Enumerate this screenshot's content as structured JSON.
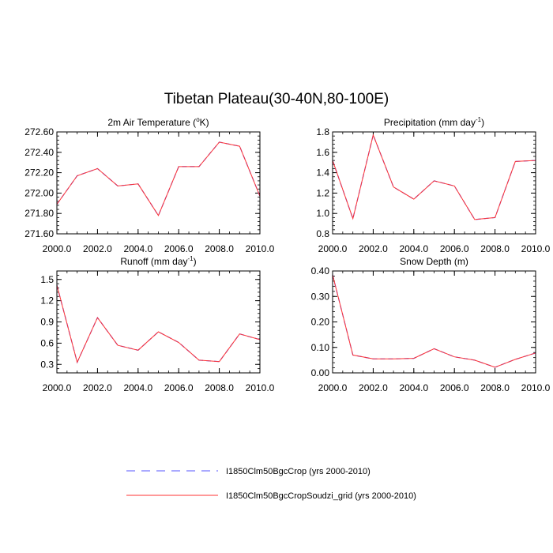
{
  "figure": {
    "title": "Tibetan Plateau(30-40N,80-100E)"
  },
  "chart_data": [
    {
      "type": "line",
      "title": "2m Air Temperature (°K)",
      "title_parts": {
        "base": "2m Air Temperature (",
        "sup": "o",
        "tail": "K)"
      },
      "x": [
        2000,
        2001,
        2002,
        2003,
        2004,
        2005,
        2006,
        2007,
        2008,
        2009,
        2010
      ],
      "xlim": [
        2000,
        2010
      ],
      "ylim": [
        271.6,
        272.6
      ],
      "xticks": [
        2000,
        2002,
        2004,
        2006,
        2008,
        2010
      ],
      "xtick_labels": [
        "2000.0",
        "2002.0",
        "2004.0",
        "2006.0",
        "2008.0",
        "2010.0"
      ],
      "yticks": [
        271.6,
        271.8,
        272.0,
        272.2,
        272.4,
        272.6
      ],
      "ytick_labels": [
        "271.60",
        "271.80",
        "272.00",
        "272.20",
        "272.40",
        "272.60"
      ],
      "series": [
        {
          "name": "I1850Clm50BgcCrop (yrs 2000-2010)",
          "values": [
            271.89,
            272.17,
            272.24,
            272.07,
            272.09,
            271.78,
            272.26,
            272.26,
            272.5,
            272.46,
            271.97
          ]
        },
        {
          "name": "I1850Clm50BgcCropSoudzi_grid (yrs 2000-2010)",
          "values": [
            271.89,
            272.17,
            272.24,
            272.07,
            272.09,
            271.78,
            272.26,
            272.26,
            272.5,
            272.46,
            271.97
          ]
        }
      ]
    },
    {
      "type": "line",
      "title": "Precipitation (mm day-1)",
      "title_parts": {
        "base": "Precipitation (mm day",
        "sup": "-1",
        "tail": ")"
      },
      "x": [
        2000,
        2001,
        2002,
        2003,
        2004,
        2005,
        2006,
        2007,
        2008,
        2009,
        2010
      ],
      "xlim": [
        2000,
        2010
      ],
      "ylim": [
        0.8,
        1.8
      ],
      "xticks": [
        2000,
        2002,
        2004,
        2006,
        2008,
        2010
      ],
      "xtick_labels": [
        "2000.0",
        "2002.0",
        "2004.0",
        "2006.0",
        "2008.0",
        "2010.0"
      ],
      "yticks": [
        0.8,
        1.0,
        1.2,
        1.4,
        1.6,
        1.8
      ],
      "ytick_labels": [
        "0.8",
        "1.0",
        "1.2",
        "1.4",
        "1.6",
        "1.8"
      ],
      "series": [
        {
          "name": "I1850Clm50BgcCrop (yrs 2000-2010)",
          "values": [
            1.52,
            0.95,
            1.77,
            1.26,
            1.14,
            1.32,
            1.27,
            0.94,
            0.96,
            1.51,
            1.52
          ]
        },
        {
          "name": "I1850Clm50BgcCropSoudzi_grid (yrs 2000-2010)",
          "values": [
            1.52,
            0.95,
            1.77,
            1.26,
            1.14,
            1.32,
            1.27,
            0.94,
            0.96,
            1.51,
            1.52
          ]
        }
      ]
    },
    {
      "type": "line",
      "title": "Runoff (mm day-1)",
      "title_parts": {
        "base": "Runoff (mm day",
        "sup": "-1",
        "tail": ")"
      },
      "x": [
        2000,
        2001,
        2002,
        2003,
        2004,
        2005,
        2006,
        2007,
        2008,
        2009,
        2010
      ],
      "xlim": [
        2000,
        2010
      ],
      "ylim": [
        0.18,
        1.62
      ],
      "xticks": [
        2000,
        2002,
        2004,
        2006,
        2008,
        2010
      ],
      "xtick_labels": [
        "2000.0",
        "2002.0",
        "2004.0",
        "2006.0",
        "2008.0",
        "2010.0"
      ],
      "yticks": [
        0.3,
        0.6,
        0.9,
        1.2,
        1.5
      ],
      "ytick_labels": [
        "0.3",
        "0.6",
        "0.9",
        "1.2",
        "1.5"
      ],
      "series": [
        {
          "name": "I1850Clm50BgcCrop (yrs 2000-2010)",
          "values": [
            1.42,
            0.33,
            0.96,
            0.57,
            0.5,
            0.76,
            0.61,
            0.36,
            0.34,
            0.73,
            0.65
          ]
        },
        {
          "name": "I1850Clm50BgcCropSoudzi_grid (yrs 2000-2010)",
          "values": [
            1.42,
            0.33,
            0.96,
            0.57,
            0.5,
            0.76,
            0.61,
            0.36,
            0.34,
            0.73,
            0.65
          ]
        }
      ]
    },
    {
      "type": "line",
      "title": "Snow Depth (m)",
      "title_parts": {
        "base": "Snow Depth (m)",
        "sup": "",
        "tail": ""
      },
      "x": [
        2000,
        2001,
        2002,
        2003,
        2004,
        2005,
        2006,
        2007,
        2008,
        2009,
        2010
      ],
      "xlim": [
        2000,
        2010
      ],
      "ylim": [
        0.0,
        0.4
      ],
      "xticks": [
        2000,
        2002,
        2004,
        2006,
        2008,
        2010
      ],
      "xtick_labels": [
        "2000.0",
        "2002.0",
        "2004.0",
        "2006.0",
        "2008.0",
        "2010.0"
      ],
      "yticks": [
        0.0,
        0.1,
        0.2,
        0.3,
        0.4
      ],
      "ytick_labels": [
        "0.00",
        "0.10",
        "0.20",
        "0.30",
        "0.40"
      ],
      "series": [
        {
          "name": "I1850Clm50BgcCrop (yrs 2000-2010)",
          "values": [
            0.385,
            0.07,
            0.055,
            0.055,
            0.057,
            0.095,
            0.063,
            0.05,
            0.022,
            0.053,
            0.078
          ]
        },
        {
          "name": "I1850Clm50BgcCropSoudzi_grid (yrs 2000-2010)",
          "values": [
            0.385,
            0.07,
            0.055,
            0.055,
            0.057,
            0.095,
            0.063,
            0.05,
            0.022,
            0.053,
            0.078
          ]
        }
      ]
    }
  ],
  "legend": {
    "placement": "bottom-center",
    "items": [
      {
        "label": "I1850Clm50BgcCrop (yrs 2000-2010)",
        "color": "#5555ff",
        "style": "dashed"
      },
      {
        "label": "I1850Clm50BgcCropSoudzi_grid (yrs 2000-2010)",
        "color": "#ff3333",
        "style": "solid"
      }
    ]
  }
}
